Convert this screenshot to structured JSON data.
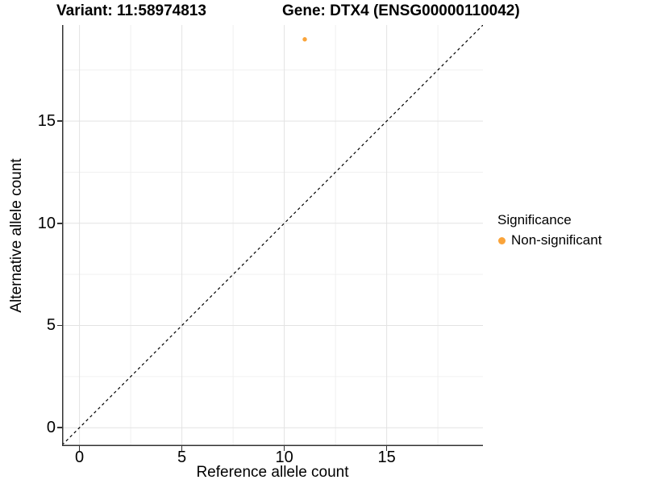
{
  "titles": {
    "variant": "Variant: 11:58974813",
    "gene": "Gene: DTX4 (ENSG00000110042)"
  },
  "chart_data": {
    "type": "scatter",
    "title": "Variant: 11:58974813  /  Gene: DTX4 (ENSG00000110042)",
    "xlabel": "Reference allele count",
    "ylabel": "Alternative allele count",
    "xlim": [
      -0.85,
      19.7
    ],
    "ylim": [
      -0.9,
      19.7
    ],
    "xticks": [
      0,
      5,
      10,
      15
    ],
    "yticks": [
      0,
      5,
      10,
      15
    ],
    "minor_ticks": [
      2.5,
      7.5,
      12.5,
      17.5
    ],
    "grid": true,
    "points": [
      {
        "x": 11,
        "y": 19,
        "series": "Non-significant"
      }
    ],
    "reference_line": {
      "type": "identity y=x",
      "style": "dashed",
      "color": "#000000"
    },
    "legend": {
      "title": "Significance",
      "position": "right",
      "entries": [
        {
          "label": "Non-significant",
          "color": "#FAA43A"
        }
      ]
    }
  },
  "colors": {
    "point": "#FAA43A",
    "grid_major": "#E3E3E3",
    "grid_minor": "#F0F0F0",
    "axis_line": "#333333",
    "background": "#FFFFFF",
    "text": "#000000"
  }
}
